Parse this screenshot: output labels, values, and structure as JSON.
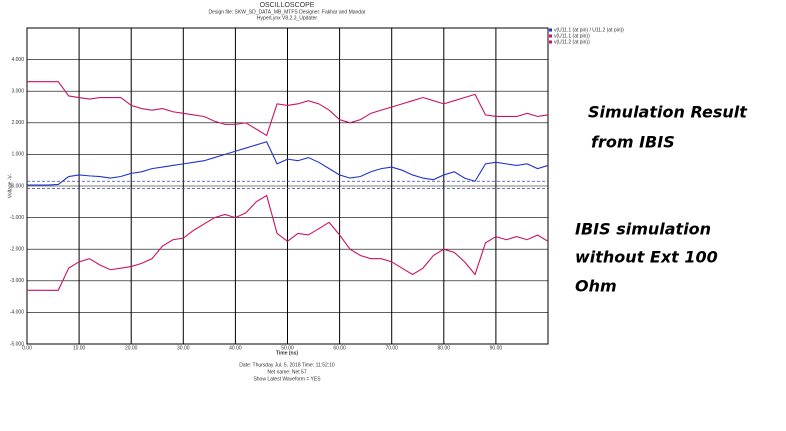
{
  "chart_data": {
    "type": "line",
    "title": "OSCILLOSCOPE",
    "subtitle": [
      "Design file: SKW_SD_DATA_MB_MTFS     Designer: Fakhar and Mandar",
      "HyperLynx V8.2.3_Updater"
    ],
    "x_label": "Time (ns)",
    "y_label": "Voltage -V-",
    "footer": [
      "Date: Thursday Jul. 5, 2018   Time: 11:52:10",
      "Net name: Net 57",
      "Show Latest Waveform = YES"
    ],
    "annotations": [
      [
        "Simulation Result",
        "from IBIS"
      ],
      [
        "IBIS simulation",
        "without Ext 100",
        "Ohm"
      ]
    ],
    "x": [
      0,
      2,
      4,
      6,
      8,
      10,
      12,
      14,
      16,
      18,
      20,
      22,
      24,
      26,
      28,
      30,
      32,
      34,
      36,
      38,
      40,
      42,
      44,
      46,
      48,
      50,
      52,
      54,
      56,
      58,
      60,
      62,
      64,
      66,
      68,
      70,
      72,
      74,
      76,
      78,
      80,
      82,
      84,
      86,
      88,
      90,
      92,
      94,
      96,
      98,
      100
    ],
    "series": [
      {
        "name": "v(U11.1 (at pin) / U11.2 (at pin))",
        "color": "#2233cc",
        "values": [
          0.03,
          0.03,
          0.03,
          0.05,
          0.3,
          0.35,
          0.32,
          0.3,
          0.25,
          0.3,
          0.4,
          0.45,
          0.55,
          0.6,
          0.65,
          0.7,
          0.75,
          0.8,
          0.9,
          1.0,
          1.1,
          1.2,
          1.3,
          1.4,
          0.7,
          0.85,
          0.8,
          0.9,
          0.75,
          0.55,
          0.35,
          0.25,
          0.3,
          0.45,
          0.55,
          0.6,
          0.5,
          0.35,
          0.25,
          0.2,
          0.35,
          0.45,
          0.25,
          0.15,
          0.7,
          0.75,
          0.7,
          0.65,
          0.7,
          0.55,
          0.65
        ]
      },
      {
        "name": "v(U11.1 (at pin))",
        "color": "#cc1166",
        "values": [
          3.3,
          3.3,
          3.3,
          3.3,
          2.85,
          2.8,
          2.75,
          2.8,
          2.8,
          2.8,
          2.55,
          2.45,
          2.4,
          2.45,
          2.35,
          2.3,
          2.25,
          2.2,
          2.05,
          1.95,
          1.95,
          2.0,
          1.8,
          1.6,
          2.6,
          2.55,
          2.6,
          2.7,
          2.6,
          2.4,
          2.1,
          2.0,
          2.1,
          2.3,
          2.4,
          2.5,
          2.6,
          2.7,
          2.8,
          2.7,
          2.6,
          2.7,
          2.8,
          2.9,
          2.25,
          2.2,
          2.2,
          2.2,
          2.3,
          2.2,
          2.25
        ]
      },
      {
        "name": "v(U11.2 (at pin))",
        "color": "#cc1166",
        "values": [
          -3.3,
          -3.3,
          -3.3,
          -3.3,
          -2.6,
          -2.4,
          -2.3,
          -2.5,
          -2.65,
          -2.6,
          -2.55,
          -2.45,
          -2.3,
          -1.9,
          -1.7,
          -1.65,
          -1.4,
          -1.2,
          -1.0,
          -0.9,
          -1.0,
          -0.85,
          -0.5,
          -0.3,
          -1.5,
          -1.75,
          -1.5,
          -1.55,
          -1.35,
          -1.15,
          -1.55,
          -2.0,
          -2.2,
          -2.3,
          -2.3,
          -2.4,
          -2.6,
          -2.8,
          -2.6,
          -2.2,
          -2.0,
          -2.1,
          -2.4,
          -2.8,
          -1.8,
          -1.6,
          -1.7,
          -1.6,
          -1.7,
          -1.55,
          -1.75
        ]
      }
    ],
    "hlines": [
      {
        "value": 0.15,
        "color": "#3344aa"
      },
      {
        "value": -0.08,
        "color": "#3344aa"
      }
    ],
    "xlim": [
      0,
      100
    ],
    "xticks": [
      {
        "value": 0,
        "label": "0.00"
      },
      {
        "value": 10,
        "label": "10.00"
      },
      {
        "value": 20,
        "label": "20.00"
      },
      {
        "value": 30,
        "label": "30.00"
      },
      {
        "value": 40,
        "label": "40.00"
      },
      {
        "value": 50,
        "label": "50.00"
      },
      {
        "value": 60,
        "label": "60.00"
      },
      {
        "value": 70,
        "label": "70.00"
      },
      {
        "value": 80,
        "label": "80.00"
      },
      {
        "value": 90,
        "label": "90.00"
      }
    ],
    "ylim": [
      -5,
      5
    ],
    "yticks": [
      {
        "value": -5,
        "label": "-5.000"
      },
      {
        "value": -4,
        "label": "-4.000"
      },
      {
        "value": -3,
        "label": "-3.000"
      },
      {
        "value": -2,
        "label": "-2.000"
      },
      {
        "value": -1,
        "label": "-1.000"
      },
      {
        "value": 0,
        "label": "0.000"
      },
      {
        "value": 1,
        "label": "1.000"
      },
      {
        "value": 2,
        "label": "2.000"
      },
      {
        "value": 3,
        "label": "3.000"
      },
      {
        "value": 4,
        "label": "4.000"
      }
    ],
    "grid": true
  }
}
